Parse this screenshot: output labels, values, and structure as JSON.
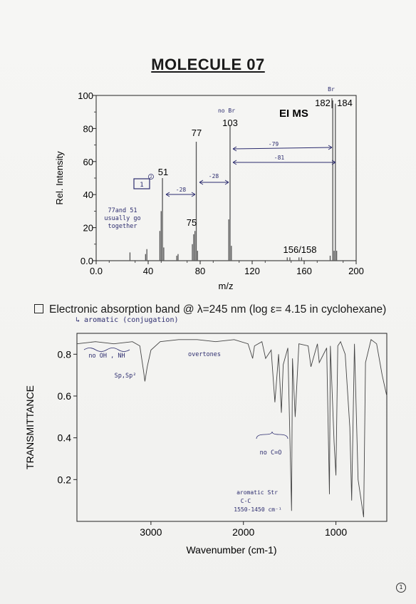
{
  "title": "MOLECULE 07",
  "ms": {
    "label": "EI MS",
    "xlabel": "m/z",
    "ylabel": "Rel. Intensity",
    "x_ticks": [
      "0.0",
      "40",
      "80",
      "120",
      "160",
      "200"
    ],
    "y_ticks": [
      "0.0",
      "20",
      "40",
      "60",
      "80",
      "100"
    ],
    "peak_labels": {
      "p51": "51",
      "p77": "77",
      "p75": "75",
      "p103": "103",
      "p182": "182",
      "p184": "184",
      "p156": "156/158"
    },
    "notes": {
      "no_br": "no Br",
      "br": "Br",
      "note_77_51_a": "77and 51",
      "note_77_51_b": "usually go",
      "note_77_51_c": "together",
      "box_num": "1",
      "circle_num": "2",
      "minus28_a": "-28",
      "minus28_b": "-28",
      "minus79": "-79",
      "minus81": "-81"
    }
  },
  "uv": {
    "text": "Electronic absorption band @ λ=245 nm (log ε= 4.15 in cyclohexane)",
    "note": "↳ aromatic (conjugation)"
  },
  "ir": {
    "xlabel": "Wavenumber (cm-1)",
    "ylabel": "TRANSMITTANCE",
    "x_ticks": [
      "3000",
      "2000",
      "1000"
    ],
    "y_ticks": [
      "0.8",
      "0.6",
      "0.4",
      "0.2"
    ],
    "notes": {
      "no_oh": "no OH , NH",
      "sp": "Sp,Sp²",
      "overtones": "overtones",
      "no_co": "no C=O",
      "arom_a": "aromatic Str",
      "arom_b": "C-C",
      "arom_c": "1550-1450 cm⁻¹"
    }
  },
  "page_number": "1",
  "chart_data": [
    {
      "type": "bar",
      "title": "EI MS",
      "xlabel": "m/z",
      "ylabel": "Rel. Intensity",
      "xlim": [
        0,
        200
      ],
      "ylim": [
        0,
        100
      ],
      "x": [
        26,
        38,
        39,
        49,
        50,
        51,
        52,
        62,
        63,
        74,
        75,
        76,
        77,
        78,
        102,
        103,
        104,
        147,
        149,
        156,
        158,
        180,
        182,
        183,
        184,
        185
      ],
      "values": [
        5,
        4,
        7,
        18,
        30,
        50,
        8,
        3,
        4,
        10,
        16,
        18,
        72,
        6,
        25,
        82,
        9,
        2,
        2,
        2,
        2,
        3,
        97,
        6,
        95,
        6
      ]
    },
    {
      "type": "line",
      "xlabel": "Wavenumber (cm-1)",
      "ylabel": "TRANSMITTANCE",
      "xlim": [
        3800,
        450
      ],
      "ylim": [
        0,
        0.9
      ],
      "x": [
        3800,
        3600,
        3400,
        3200,
        3120,
        3080,
        3065,
        3040,
        3000,
        2900,
        2700,
        2500,
        2300,
        2100,
        1950,
        1900,
        1880,
        1800,
        1760,
        1700,
        1660,
        1620,
        1590,
        1570,
        1520,
        1480,
        1470,
        1440,
        1400,
        1300,
        1270,
        1200,
        1180,
        1100,
        1070,
        1060,
        1020,
        1000,
        980,
        950,
        900,
        850,
        830,
        800,
        760,
        700,
        680,
        620,
        560,
        500,
        450
      ],
      "values": [
        0.85,
        0.86,
        0.85,
        0.86,
        0.84,
        0.72,
        0.67,
        0.74,
        0.82,
        0.86,
        0.87,
        0.87,
        0.86,
        0.87,
        0.85,
        0.78,
        0.84,
        0.86,
        0.78,
        0.82,
        0.57,
        0.8,
        0.52,
        0.75,
        0.83,
        0.05,
        0.78,
        0.5,
        0.85,
        0.84,
        0.74,
        0.85,
        0.76,
        0.83,
        0.13,
        0.84,
        0.38,
        0.22,
        0.84,
        0.86,
        0.8,
        0.45,
        0.1,
        0.85,
        0.2,
        0.02,
        0.76,
        0.87,
        0.85,
        0.7,
        0.6
      ]
    }
  ]
}
